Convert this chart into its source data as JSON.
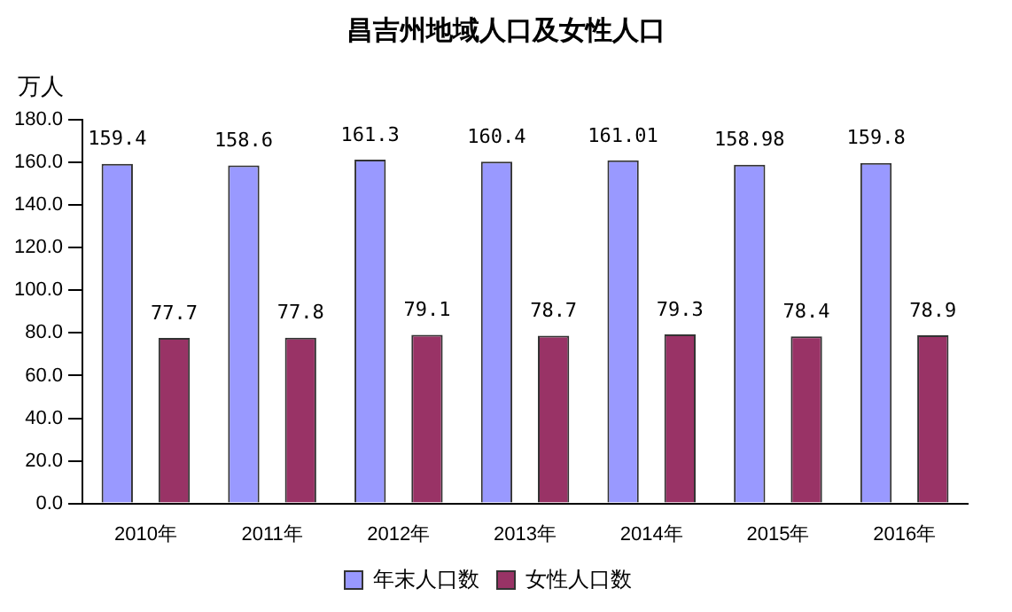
{
  "chart_data": {
    "type": "bar",
    "title": "昌吉州地域人口及女性人口",
    "ylabel": "万人",
    "categories": [
      "2010年",
      "2011年",
      "2012年",
      "2013年",
      "2014年",
      "2015年",
      "2016年"
    ],
    "series": [
      {
        "name": "年末人口数",
        "color": "#9999ff",
        "values": [
          159.4,
          158.6,
          161.3,
          160.4,
          161.01,
          158.98,
          159.8
        ]
      },
      {
        "name": "女性人口数",
        "color": "#993366",
        "values": [
          77.7,
          77.8,
          79.1,
          78.7,
          79.3,
          78.4,
          78.9
        ]
      }
    ],
    "ylim": [
      0,
      180
    ],
    "yticks": [
      {
        "value": 0,
        "label": "0.0"
      },
      {
        "value": 20,
        "label": "20.0"
      },
      {
        "value": 40,
        "label": "40.0"
      },
      {
        "value": 60,
        "label": "60.0"
      },
      {
        "value": 80,
        "label": "80.0"
      },
      {
        "value": 100,
        "label": "100.0"
      },
      {
        "value": 120,
        "label": "120.0"
      },
      {
        "value": 140,
        "label": "140.0"
      },
      {
        "value": 160,
        "label": "160.0"
      },
      {
        "value": 180,
        "label": "180.0"
      }
    ],
    "grid": false,
    "legend": "bottom",
    "data_labels": true
  }
}
